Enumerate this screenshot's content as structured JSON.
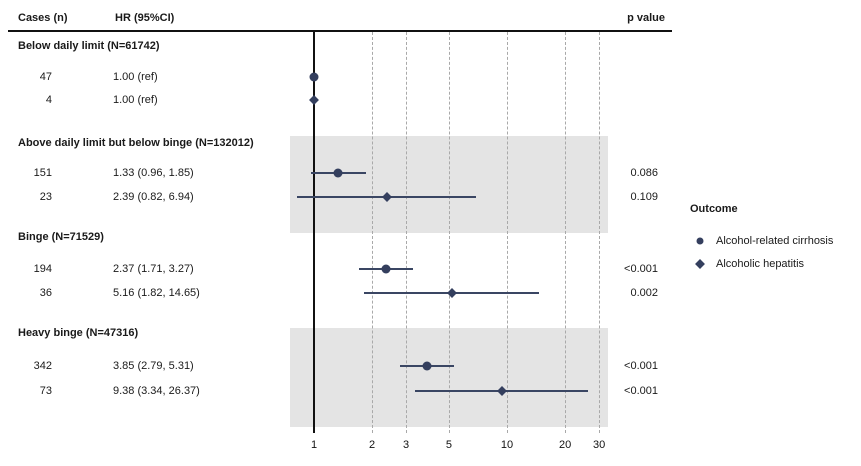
{
  "header": {
    "cases_label": "Cases (n)",
    "hr_label": "HR (95%CI)",
    "p_label": "p value"
  },
  "legend": {
    "title": "Outcome",
    "items": [
      {
        "marker": "circle",
        "label": "Alcohol-related cirrhosis"
      },
      {
        "marker": "diamond",
        "label": "Alcoholic hepatitis"
      }
    ]
  },
  "chart_data": {
    "type": "scatter",
    "subtype": "forest-plot",
    "x_scale": "log10",
    "x_ticks": [
      "1",
      "2",
      "3",
      "5",
      "10",
      "20",
      "30"
    ],
    "x_range": [
      0.75,
      33
    ],
    "reference_value": 1,
    "grid": "vertical-dashed",
    "colors": {
      "marker": "#343f5e",
      "ci_line": "#3a4663",
      "band": "#e4e4e4",
      "gridline": "#a9a9a9",
      "axis_line": "#111111"
    },
    "groups": [
      {
        "label": "Below daily limit (N=61742)",
        "shaded": false,
        "rows": [
          {
            "cases": "47",
            "hr_text": "1.00 (ref)",
            "hr": 1.0,
            "ci_low": null,
            "ci_high": null,
            "p": "",
            "outcome": "Alcohol-related cirrhosis",
            "marker": "circle"
          },
          {
            "cases": "4",
            "hr_text": "1.00 (ref)",
            "hr": 1.0,
            "ci_low": null,
            "ci_high": null,
            "p": "",
            "outcome": "Alcoholic hepatitis",
            "marker": "diamond"
          }
        ]
      },
      {
        "label": "Above daily limit but below binge (N=132012)",
        "shaded": true,
        "rows": [
          {
            "cases": "151",
            "hr_text": "1.33 (0.96, 1.85)",
            "hr": 1.33,
            "ci_low": 0.96,
            "ci_high": 1.85,
            "p": "0.086",
            "outcome": "Alcohol-related cirrhosis",
            "marker": "circle"
          },
          {
            "cases": "23",
            "hr_text": "2.39 (0.82, 6.94)",
            "hr": 2.39,
            "ci_low": 0.82,
            "ci_high": 6.94,
            "p": "0.109",
            "outcome": "Alcoholic hepatitis",
            "marker": "diamond"
          }
        ]
      },
      {
        "label": "Binge (N=71529)",
        "shaded": false,
        "rows": [
          {
            "cases": "194",
            "hr_text": "2.37 (1.71, 3.27)",
            "hr": 2.37,
            "ci_low": 1.71,
            "ci_high": 3.27,
            "p": "<0.001",
            "outcome": "Alcohol-related cirrhosis",
            "marker": "circle"
          },
          {
            "cases": "36",
            "hr_text": "5.16 (1.82, 14.65)",
            "hr": 5.16,
            "ci_low": 1.82,
            "ci_high": 14.65,
            "p": "0.002",
            "outcome": "Alcoholic hepatitis",
            "marker": "diamond"
          }
        ]
      },
      {
        "label": "Heavy binge (N=47316)",
        "shaded": true,
        "rows": [
          {
            "cases": "342",
            "hr_text": "3.85 (2.79, 5.31)",
            "hr": 3.85,
            "ci_low": 2.79,
            "ci_high": 5.31,
            "p": "<0.001",
            "outcome": "Alcohol-related cirrhosis",
            "marker": "circle"
          },
          {
            "cases": "73",
            "hr_text": "9.38 (3.34, 26.37)",
            "hr": 9.38,
            "ci_low": 3.34,
            "ci_high": 26.37,
            "p": "<0.001",
            "outcome": "Alcoholic hepatitis",
            "marker": "diamond"
          }
        ]
      }
    ]
  }
}
